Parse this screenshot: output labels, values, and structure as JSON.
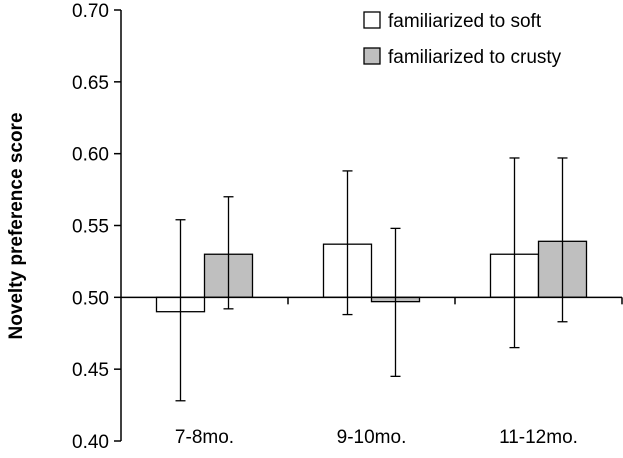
{
  "chart_data": {
    "type": "bar",
    "title": "",
    "xlabel": "",
    "ylabel": "Novelty preference score",
    "ylim": [
      0.4,
      0.7
    ],
    "baseline": 0.5,
    "yticks": [
      "0.40",
      "0.45",
      "0.50",
      "0.55",
      "0.60",
      "0.65",
      "0.70"
    ],
    "categories": [
      "7-8mo.",
      "9-10mo.",
      "11-12mo."
    ],
    "series": [
      {
        "name": "familiarized to soft",
        "color": "#ffffff",
        "values": [
          0.49,
          0.537,
          0.53
        ],
        "err_low": [
          0.428,
          0.488,
          0.465
        ],
        "err_high": [
          0.554,
          0.588,
          0.597
        ]
      },
      {
        "name": "familiarized to crusty",
        "color": "#bfbfbf",
        "values": [
          0.53,
          0.497,
          0.539
        ],
        "err_low": [
          0.492,
          0.445,
          0.483
        ],
        "err_high": [
          0.57,
          0.548,
          0.597
        ]
      }
    ],
    "legend_position": "top-right",
    "grid": false
  }
}
